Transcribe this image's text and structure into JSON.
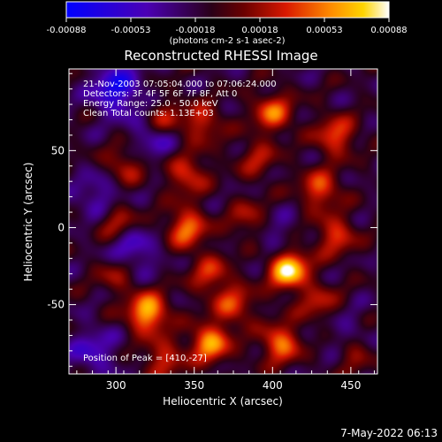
{
  "chart_data": {
    "type": "heatmap",
    "title": "Reconstructed RHESSI Image",
    "xlabel": "Heliocentric X (arcsec)",
    "ylabel": "Heliocentric Y (arcsec)",
    "xlim": [
      270,
      467
    ],
    "ylim": [
      -95,
      103
    ],
    "x_ticks": [
      300,
      350,
      400,
      450
    ],
    "y_ticks": [
      50,
      0,
      -50
    ],
    "grid": false,
    "colorbar": {
      "position": "top",
      "ticks": [
        "-0.00088",
        "-0.00053",
        "-0.00018",
        "0.00018",
        "0.00053",
        "0.00088"
      ],
      "unit_label": "(photons cm-2 s-1 asec-2)",
      "range": [
        -0.00088,
        0.00088
      ]
    },
    "annotations": [
      "21-Nov-2003 07:05:04.000 to 07:06:24.000",
      "Detectors: 3F 4F 5F 6F 7F 8F, Att 0",
      "Energy Range: 25.0 - 50.0 keV",
      "Clean     Total counts: 1.13E+03"
    ],
    "peak_label": "Position of Peak = [410,-27]",
    "peak": {
      "x": 410,
      "y": -27
    },
    "hotspots": [
      {
        "x": 330,
        "y": 70,
        "strength": 0.5
      },
      {
        "x": 355,
        "y": 68,
        "strength": 0.45
      },
      {
        "x": 400,
        "y": 75,
        "strength": 0.6
      },
      {
        "x": 440,
        "y": 60,
        "strength": 0.55
      },
      {
        "x": 305,
        "y": 40,
        "strength": 0.4
      },
      {
        "x": 345,
        "y": 35,
        "strength": 0.5
      },
      {
        "x": 390,
        "y": 45,
        "strength": 0.35
      },
      {
        "x": 430,
        "y": 25,
        "strength": 0.55
      },
      {
        "x": 300,
        "y": 5,
        "strength": 0.45
      },
      {
        "x": 345,
        "y": 0,
        "strength": 0.65
      },
      {
        "x": 385,
        "y": 5,
        "strength": 0.4
      },
      {
        "x": 440,
        "y": -5,
        "strength": 0.5
      },
      {
        "x": 410,
        "y": -27,
        "strength": 1.0
      },
      {
        "x": 360,
        "y": -30,
        "strength": 0.45
      },
      {
        "x": 300,
        "y": -30,
        "strength": 0.35
      },
      {
        "x": 320,
        "y": -55,
        "strength": 0.85
      },
      {
        "x": 375,
        "y": -50,
        "strength": 0.5
      },
      {
        "x": 430,
        "y": -50,
        "strength": 0.4
      },
      {
        "x": 330,
        "y": -85,
        "strength": 0.45
      },
      {
        "x": 360,
        "y": -75,
        "strength": 0.75
      },
      {
        "x": 405,
        "y": -75,
        "strength": 0.65
      },
      {
        "x": 450,
        "y": -80,
        "strength": 0.4
      }
    ],
    "coldspots": [
      {
        "x": 300,
        "y": 90,
        "strength": 0.6
      },
      {
        "x": 325,
        "y": 60,
        "strength": 0.4
      },
      {
        "x": 290,
        "y": 20,
        "strength": 0.35
      },
      {
        "x": 310,
        "y": -15,
        "strength": 0.4
      },
      {
        "x": 285,
        "y": -80,
        "strength": 0.35
      },
      {
        "x": 445,
        "y": -70,
        "strength": 0.3
      },
      {
        "x": 400,
        "y": -5,
        "strength": 0.25
      }
    ]
  },
  "timestamp": "7-May-2022 06:13"
}
